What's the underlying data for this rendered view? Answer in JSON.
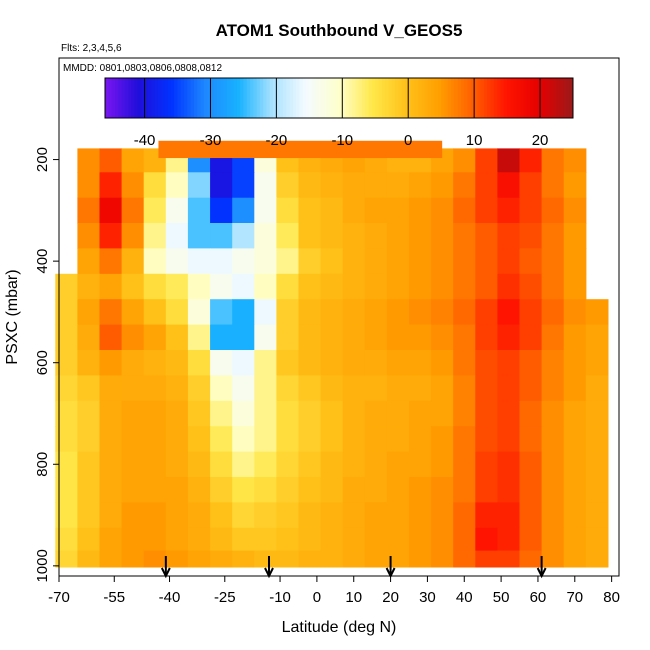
{
  "chart_data": {
    "type": "heatmap",
    "title": "ATOM1 Southbound V_GEOS5",
    "subtitle_flights": "Flts: 2,3,4,5,6",
    "subtitle_dates": "MMDD: 0801,0803,0806,0808,0812",
    "xlabel": "Latitude (deg N)",
    "ylabel": "PSXC (mbar)",
    "xlim": [
      -70,
      82
    ],
    "ylim": [
      1020,
      0
    ],
    "x_ticks": [
      -70,
      -55,
      -40,
      -25,
      -10,
      0,
      10,
      20,
      30,
      40,
      50,
      60,
      70,
      80
    ],
    "y_ticks": [
      200,
      400,
      600,
      800,
      1000
    ],
    "colorbar": {
      "range": [
        -46,
        25
      ],
      "ticks": [
        -40,
        -30,
        -20,
        -10,
        0,
        10,
        20
      ],
      "colors": [
        "#7b16f0",
        "#1f0edb",
        "#0033ff",
        "#1e88ff",
        "#18b2ff",
        "#a8e2ff",
        "#f4fbff",
        "#ffffcc",
        "#ffe84a",
        "#ffc21a",
        "#ff9f00",
        "#ff5f00",
        "#ff1500",
        "#e60000",
        "#9b1a1a"
      ]
    },
    "arrows_latitude": [
      -41,
      -13,
      20,
      61
    ],
    "lat_grid": [
      -68,
      -62,
      -56,
      -50,
      -44,
      -38,
      -32,
      -26,
      -20,
      -14,
      -8,
      -2,
      4,
      10,
      16,
      22,
      28,
      34,
      40,
      46,
      52,
      58,
      64,
      70,
      76
    ],
    "pressure_levels": [
      200,
      250,
      300,
      350,
      400,
      450,
      500,
      550,
      600,
      650,
      700,
      750,
      800,
      850,
      900,
      950,
      990
    ],
    "v_wind": [
      [
        null,
        6,
        10,
        4,
        2,
        -8,
        -30,
        -40,
        -35,
        -12,
        0,
        2,
        3,
        4,
        3,
        2,
        2,
        4,
        6,
        12,
        22,
        14,
        8,
        6,
        null
      ],
      [
        null,
        6,
        14,
        6,
        -4,
        -10,
        -22,
        -40,
        -35,
        -14,
        -2,
        1,
        2,
        3,
        3,
        3,
        4,
        5,
        8,
        12,
        16,
        12,
        8,
        5,
        null
      ],
      [
        null,
        8,
        18,
        8,
        -6,
        -14,
        -24,
        -36,
        -30,
        -14,
        -4,
        0,
        1,
        3,
        4,
        4,
        5,
        6,
        9,
        12,
        14,
        12,
        9,
        6,
        null
      ],
      [
        null,
        6,
        14,
        6,
        -8,
        -16,
        -24,
        -24,
        -20,
        -12,
        -6,
        0,
        1,
        2,
        3,
        4,
        5,
        6,
        8,
        10,
        12,
        11,
        8,
        5,
        null
      ],
      [
        null,
        4,
        8,
        2,
        -10,
        -14,
        -16,
        -16,
        -14,
        -12,
        -8,
        -2,
        0,
        2,
        3,
        4,
        5,
        6,
        8,
        10,
        12,
        10,
        8,
        5,
        null
      ],
      [
        -2,
        2,
        4,
        0,
        -4,
        -6,
        -10,
        -14,
        -16,
        -10,
        -4,
        0,
        1,
        2,
        3,
        4,
        5,
        6,
        8,
        10,
        13,
        11,
        8,
        5,
        null
      ],
      [
        -2,
        4,
        8,
        4,
        0,
        -4,
        -12,
        -24,
        -26,
        -16,
        -2,
        1,
        2,
        3,
        4,
        5,
        6,
        7,
        9,
        12,
        15,
        12,
        9,
        6,
        5
      ],
      [
        -2,
        3,
        10,
        6,
        4,
        0,
        -8,
        -26,
        -26,
        -14,
        -2,
        1,
        2,
        3,
        4,
        5,
        5,
        6,
        8,
        12,
        14,
        12,
        8,
        5,
        4
      ],
      [
        -2,
        2,
        5,
        3,
        2,
        1,
        -4,
        -14,
        -16,
        -8,
        -1,
        1,
        2,
        3,
        3,
        4,
        4,
        5,
        8,
        11,
        12,
        10,
        7,
        5,
        4
      ],
      [
        -3,
        -1,
        3,
        3,
        3,
        2,
        -2,
        -10,
        -14,
        -8,
        -3,
        -1,
        1,
        2,
        2,
        3,
        3,
        4,
        7,
        11,
        12,
        10,
        7,
        5,
        3
      ],
      [
        -4,
        -2,
        3,
        4,
        4,
        3,
        -1,
        -8,
        -12,
        -8,
        -4,
        -2,
        0,
        2,
        3,
        3,
        4,
        4,
        7,
        11,
        12,
        9,
        6,
        4,
        3
      ],
      [
        -4,
        -2,
        3,
        4,
        4,
        3,
        0,
        -6,
        -10,
        -8,
        -4,
        -2,
        0,
        2,
        3,
        3,
        4,
        5,
        8,
        11,
        12,
        9,
        6,
        4,
        3
      ],
      [
        -5,
        -1,
        3,
        4,
        4,
        3,
        1,
        -4,
        -8,
        -6,
        -3,
        -1,
        1,
        2,
        3,
        4,
        4,
        5,
        8,
        12,
        13,
        10,
        6,
        4,
        3
      ],
      [
        -5,
        -1,
        3,
        4,
        4,
        4,
        2,
        -2,
        -5,
        -4,
        -2,
        0,
        1,
        3,
        3,
        4,
        5,
        6,
        8,
        12,
        13,
        10,
        6,
        4,
        3
      ],
      [
        -5,
        -1,
        3,
        5,
        5,
        4,
        3,
        0,
        -3,
        -2,
        -1,
        1,
        2,
        3,
        4,
        4,
        5,
        6,
        9,
        14,
        14,
        10,
        6,
        4,
        3
      ],
      [
        -4,
        0,
        4,
        5,
        5,
        4,
        3,
        1,
        -1,
        -1,
        0,
        1,
        2,
        3,
        4,
        4,
        5,
        6,
        9,
        15,
        14,
        10,
        6,
        4,
        3
      ],
      [
        -3,
        1,
        4,
        5,
        6,
        5,
        4,
        3,
        2,
        1,
        1,
        2,
        2,
        3,
        4,
        4,
        5,
        6,
        9,
        12,
        12,
        9,
        6,
        4,
        3
      ]
    ],
    "top_band": {
      "lat_range": [
        -43,
        34
      ],
      "pressure": 175,
      "v": 8
    }
  }
}
